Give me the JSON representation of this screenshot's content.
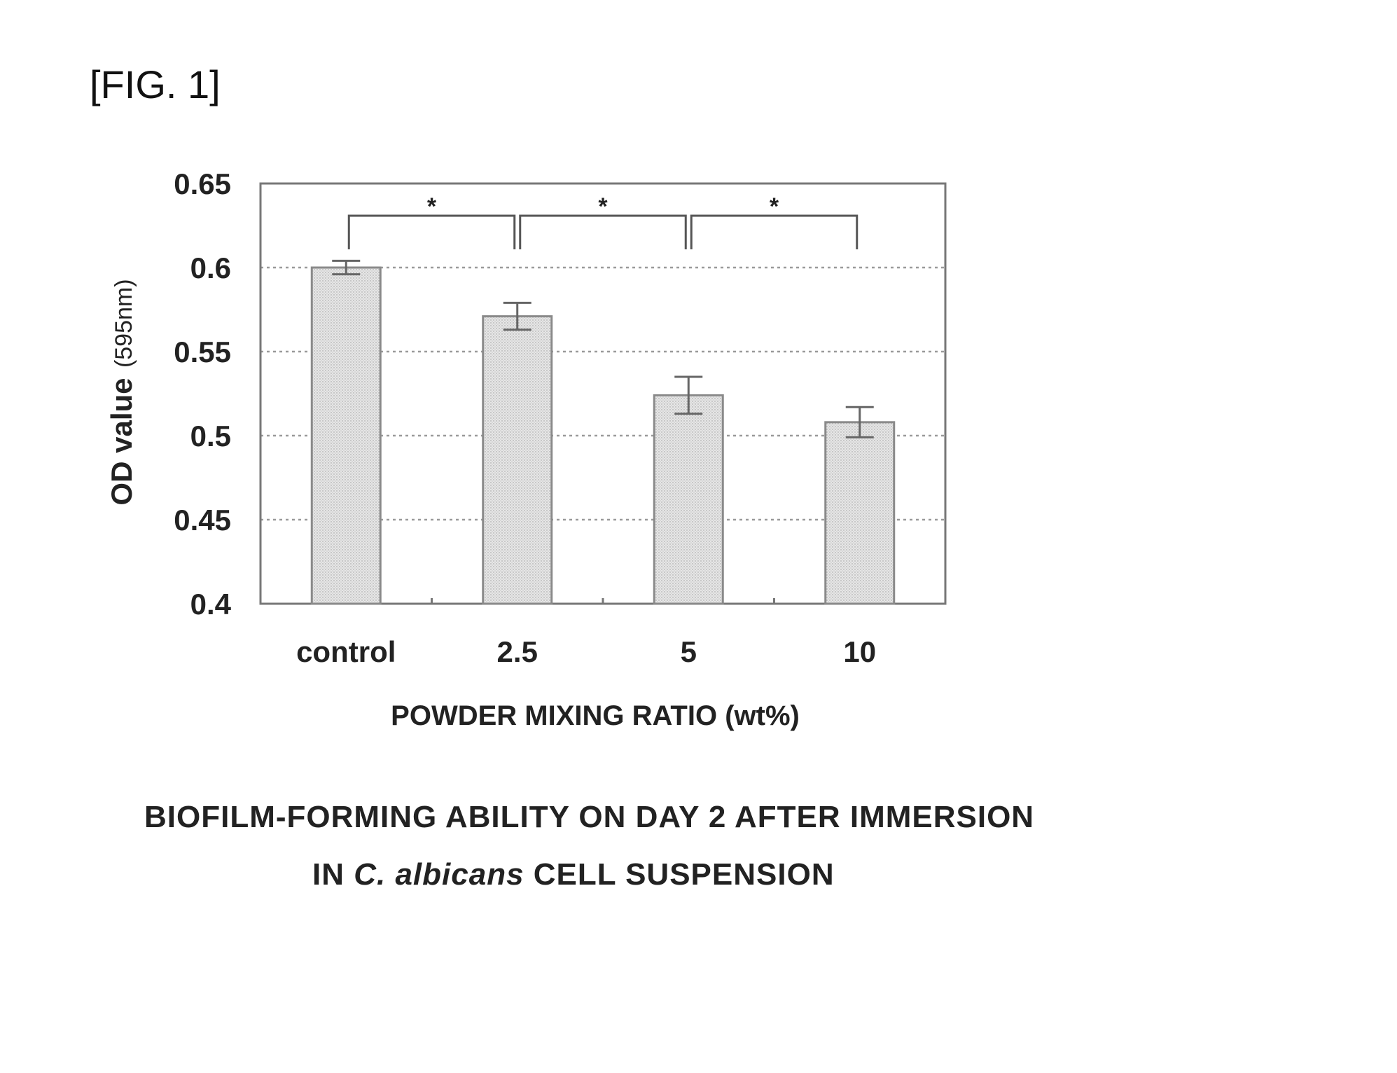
{
  "figure_label": "[FIG. 1]",
  "caption": {
    "line1": "BIOFILM-FORMING ABILITY ON DAY 2 AFTER IMMERSION",
    "line2_prefix": "IN ",
    "line2_italic": "C. albicans",
    "line2_suffix": " CELL SUSPENSION"
  },
  "chart_data": {
    "type": "bar",
    "categories": [
      "control",
      "2.5",
      "5",
      "10"
    ],
    "values": [
      0.6,
      0.571,
      0.524,
      0.508
    ],
    "errors": [
      0.004,
      0.008,
      0.011,
      0.009
    ],
    "xlabel": "POWDER MIXING RATIO (wt%)",
    "ylabel": "OD value",
    "ylabel_unit": "(595nm)",
    "ylim": [
      0.4,
      0.65
    ],
    "yticks": [
      "0.4",
      "0.45",
      "0.5",
      "0.55",
      "0.6",
      "0.65"
    ],
    "grid": true,
    "significance": [
      {
        "from": 0,
        "to": 1,
        "label": "*"
      },
      {
        "from": 1,
        "to": 2,
        "label": "*"
      },
      {
        "from": 2,
        "to": 3,
        "label": "*"
      }
    ],
    "colors": {
      "bar_fill": "#e2e2e2",
      "bar_stroke": "#8a8a8a",
      "grid": "#9a9a9a",
      "axis": "#777777"
    }
  }
}
